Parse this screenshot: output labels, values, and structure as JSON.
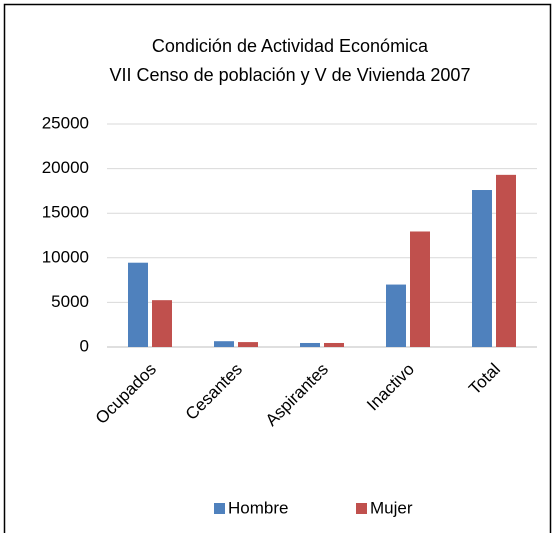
{
  "chart_data": {
    "type": "bar",
    "title": "Condición de Actividad Económica",
    "subtitle": "VII Censo de población y V de Vivienda 2007",
    "categories": [
      "Ocupados",
      "Cesantes",
      "Aspirantes",
      "Inactivo",
      "Total"
    ],
    "series": [
      {
        "name": "Hombre",
        "color": "#4f81bd",
        "values": [
          9450,
          650,
          450,
          7000,
          17600
        ]
      },
      {
        "name": "Mujer",
        "color": "#c0504d",
        "values": [
          5250,
          550,
          450,
          12950,
          19300
        ]
      }
    ],
    "ylim": [
      0,
      25000
    ],
    "yticks": [
      0,
      5000,
      10000,
      15000,
      20000,
      25000
    ],
    "grid": true,
    "legend": "bottom"
  }
}
